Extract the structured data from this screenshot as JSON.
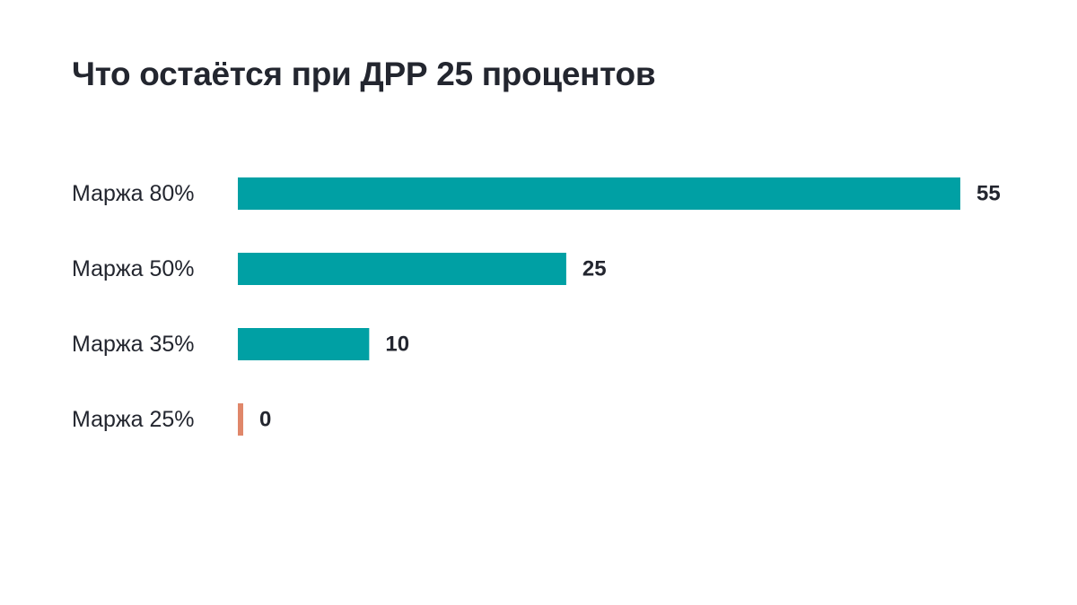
{
  "chart_data": {
    "type": "bar",
    "orientation": "horizontal",
    "title": "Что остаётся при ДРР 25 процентов",
    "categories": [
      "Маржа 80%",
      "Маржа 50%",
      "Маржа 35%",
      "Маржа 25%"
    ],
    "values": [
      55,
      25,
      10,
      0
    ],
    "value_labels": [
      "55",
      "25",
      "10",
      "0"
    ],
    "xlim": [
      0,
      55
    ],
    "grid": false,
    "legend": "none",
    "colors": {
      "positive": "#00a0a4",
      "zero": "#e0876a",
      "text": "#23262f"
    }
  }
}
